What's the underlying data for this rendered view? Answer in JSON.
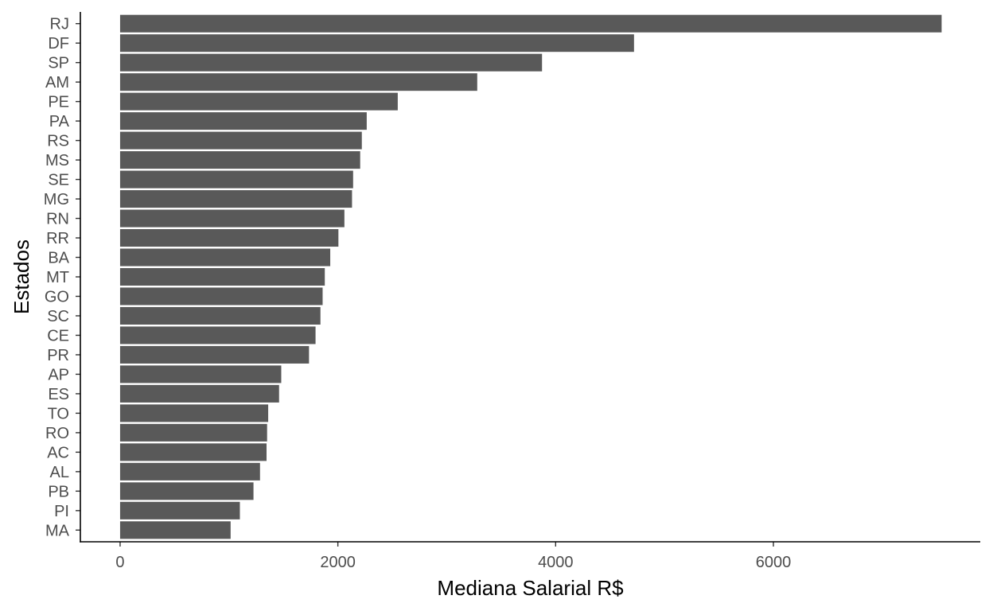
{
  "chart_data": {
    "type": "bar",
    "orientation": "horizontal",
    "title": "",
    "xlabel": "Mediana Salarial R$",
    "ylabel": "Estados",
    "xlim": [
      -365,
      7900
    ],
    "x_ticks": [
      0,
      2000,
      4000,
      6000
    ],
    "grid": false,
    "bar_color": "#595959",
    "categories": [
      "RJ",
      "DF",
      "SP",
      "AM",
      "PE",
      "PA",
      "RS",
      "MS",
      "SE",
      "MG",
      "RN",
      "RR",
      "BA",
      "MT",
      "GO",
      "SC",
      "CE",
      "PR",
      "AP",
      "ES",
      "TO",
      "RO",
      "AC",
      "AL",
      "PB",
      "PI",
      "MA"
    ],
    "values": [
      7545,
      4720,
      3875,
      3280,
      2550,
      2265,
      2220,
      2205,
      2140,
      2130,
      2060,
      2005,
      1930,
      1880,
      1860,
      1840,
      1795,
      1735,
      1480,
      1460,
      1360,
      1350,
      1345,
      1285,
      1225,
      1100,
      1015
    ]
  }
}
